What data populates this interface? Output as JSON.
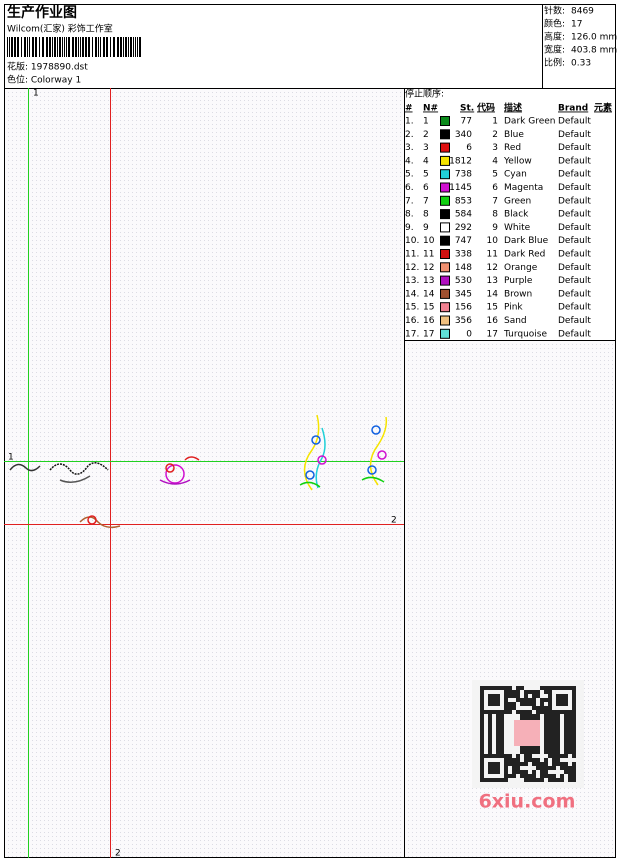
{
  "header": {
    "title": "生产作业图",
    "company": "Wilcom(汇家) 彩饰工作室",
    "design": "花版: 1978890.dst",
    "colorway": "色位: Colorway 1"
  },
  "stats": [
    {
      "label": "针数:",
      "value": "8469"
    },
    {
      "label": "颜色:",
      "value": "17"
    },
    {
      "label": "高度:",
      "value": "126.0 mm"
    },
    {
      "label": "宽度:",
      "value": "403.8 mm"
    },
    {
      "label": "比例:",
      "value": "0.33"
    }
  ],
  "table": {
    "title": "停止顺序:",
    "headers": [
      "#",
      "N#",
      "St.",
      "代码",
      "描述",
      "Brand",
      "元素"
    ],
    "rows": [
      {
        "index": "1.",
        "n": "1",
        "color": "#0a8a1a",
        "stitches": "77",
        "code": "1",
        "name": "Dark Green",
        "brand": "Default"
      },
      {
        "index": "2.",
        "n": "2",
        "color": "#000000",
        "stitches": "340",
        "code": "2",
        "name": "Blue",
        "brand": "Default"
      },
      {
        "index": "3.",
        "n": "3",
        "color": "#e01010",
        "stitches": "6",
        "code": "3",
        "name": "Red",
        "brand": "Default"
      },
      {
        "index": "4.",
        "n": "4",
        "color": "#f5e400",
        "stitches": "1812",
        "code": "4",
        "name": "Yellow",
        "brand": "Default"
      },
      {
        "index": "5.",
        "n": "5",
        "color": "#20d0d8",
        "stitches": "738",
        "code": "5",
        "name": "Cyan",
        "brand": "Default"
      },
      {
        "index": "6.",
        "n": "6",
        "color": "#d010d0",
        "stitches": "1145",
        "code": "6",
        "name": "Magenta",
        "brand": "Default"
      },
      {
        "index": "7.",
        "n": "7",
        "color": "#10d010",
        "stitches": "853",
        "code": "7",
        "name": "Green",
        "brand": "Default"
      },
      {
        "index": "8.",
        "n": "8",
        "color": "#000000",
        "stitches": "584",
        "code": "8",
        "name": "Black",
        "brand": "Default"
      },
      {
        "index": "9.",
        "n": "9",
        "color": "#ffffff",
        "stitches": "292",
        "code": "9",
        "name": "White",
        "brand": "Default"
      },
      {
        "index": "10.",
        "n": "10",
        "color": "#000000",
        "stitches": "747",
        "code": "10",
        "name": "Dark Blue",
        "brand": "Default"
      },
      {
        "index": "11.",
        "n": "11",
        "color": "#d01010",
        "stitches": "338",
        "code": "11",
        "name": "Dark Red",
        "brand": "Default"
      },
      {
        "index": "12.",
        "n": "12",
        "color": "#f09070",
        "stitches": "148",
        "code": "12",
        "name": "Orange",
        "brand": "Default"
      },
      {
        "index": "13.",
        "n": "13",
        "color": "#b010c0",
        "stitches": "530",
        "code": "13",
        "name": "Purple",
        "brand": "Default"
      },
      {
        "index": "14.",
        "n": "14",
        "color": "#a05030",
        "stitches": "345",
        "code": "14",
        "name": "Brown",
        "brand": "Default"
      },
      {
        "index": "15.",
        "n": "15",
        "color": "#f08090",
        "stitches": "156",
        "code": "15",
        "name": "Pink",
        "brand": "Default"
      },
      {
        "index": "16.",
        "n": "16",
        "color": "#f0c080",
        "stitches": "356",
        "code": "16",
        "name": "Sand",
        "brand": "Default"
      },
      {
        "index": "17.",
        "n": "17",
        "color": "#60e0d8",
        "stitches": "0",
        "code": "17",
        "name": "Turquoise",
        "brand": "Default"
      }
    ]
  },
  "guides": {
    "v1": "1",
    "h1": "1",
    "v2": "2",
    "h2": "2"
  },
  "watermark": "6xiu.com"
}
